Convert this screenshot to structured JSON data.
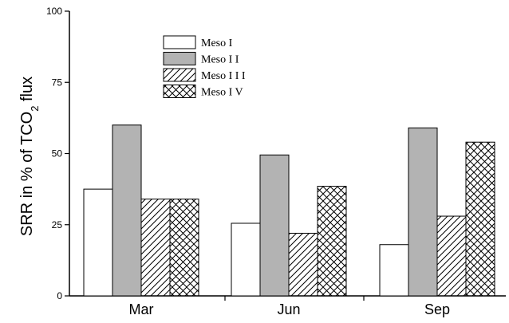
{
  "chart_data": {
    "type": "bar",
    "categories": [
      "Mar",
      "Jun",
      "Sep"
    ],
    "series": [
      {
        "name": "Meso I",
        "values": [
          37.5,
          25.5,
          18
        ],
        "fill": "none"
      },
      {
        "name": "Meso I I",
        "values": [
          60,
          49.5,
          59
        ],
        "fill": "gray"
      },
      {
        "name": "Meso I I I",
        "values": [
          34,
          22,
          28
        ],
        "fill": "diagonal"
      },
      {
        "name": "Meso I V",
        "values": [
          34,
          38.5,
          54
        ],
        "fill": "crosshatch"
      }
    ],
    "ylabel": "SRR in % of TCO2 flux",
    "ylabel_main": "SRR in % of TCO",
    "ylabel_sub": "2",
    "ylabel_end": " flux",
    "ylim": [
      0,
      100
    ],
    "yticks": [
      "0",
      "25",
      "50",
      "75",
      "100"
    ],
    "legend_position": "top-center",
    "colors": {
      "bar_outline": "#000000",
      "gray_fill": "#b3b3b3",
      "background": "#ffffff"
    }
  }
}
